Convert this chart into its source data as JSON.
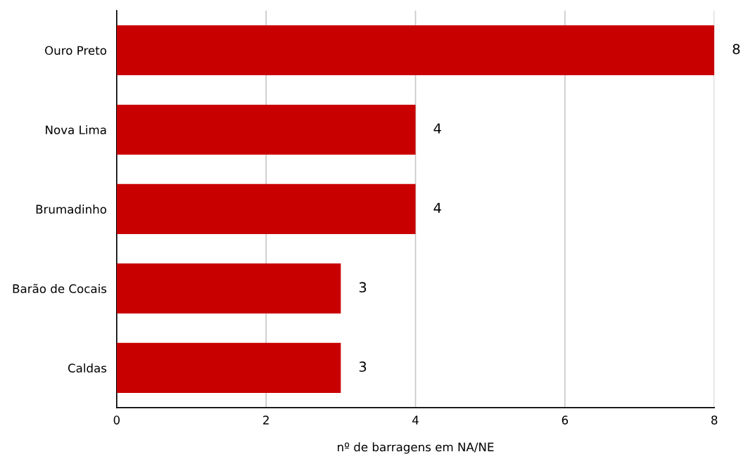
{
  "chart_data": {
    "type": "bar",
    "orientation": "horizontal",
    "xlabel": "nº de barragens em NA/NE",
    "categories": [
      "Ouro Preto",
      "Nova Lima",
      "Brumadinho",
      "Barão de Cocais",
      "Caldas"
    ],
    "values": [
      8,
      4,
      4,
      3,
      3
    ],
    "color": "#c80000",
    "xlim": [
      0,
      8
    ],
    "xticks": [
      0,
      2,
      4,
      6,
      8
    ],
    "grid": "x",
    "data_labels": true
  }
}
